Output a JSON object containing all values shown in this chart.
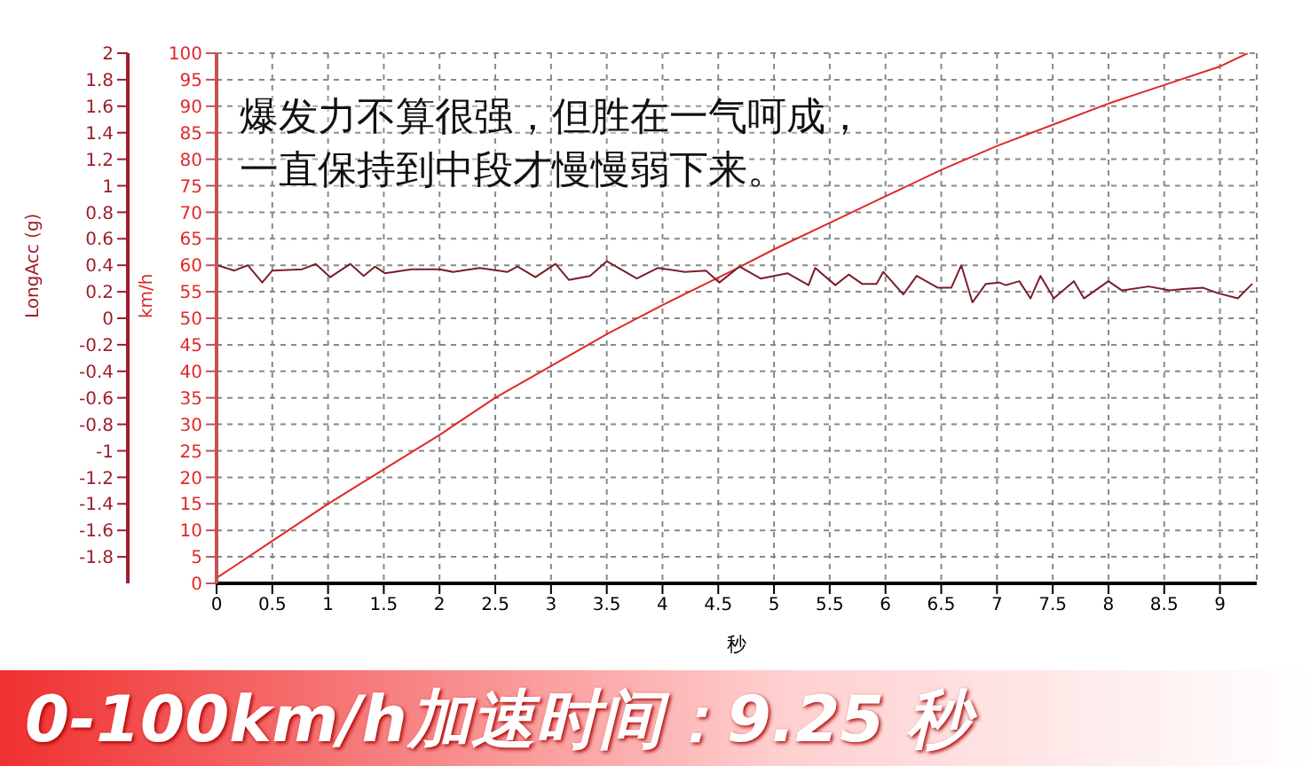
{
  "chart_data": {
    "type": "line",
    "xlabel": "秒",
    "ylabel": "km/h",
    "y2label": "LongAcc (g)",
    "annotations": [
      "爆发力不算很强，但胜在一气呵成，",
      "一直保持到中段才慢慢弱下来。",
      "0-100km/h加速时间：9.25 秒"
    ],
    "xlim": [
      0,
      9.33
    ],
    "xticks": [
      0,
      0.5,
      1,
      1.5,
      2,
      2.5,
      3,
      3.5,
      4,
      4.5,
      5,
      5.5,
      6,
      6.5,
      7,
      7.5,
      8,
      8.5,
      9
    ],
    "ylim": [
      0,
      100
    ],
    "yticks": [
      0,
      5,
      10,
      15,
      20,
      25,
      30,
      35,
      40,
      45,
      50,
      55,
      60,
      65,
      70,
      75,
      80,
      85,
      90,
      95,
      100
    ],
    "y2lim": [
      -2,
      2
    ],
    "y2ticks": [
      -1.8,
      -1.6,
      -1.4,
      -1.2,
      -1,
      -0.8,
      -0.6,
      -0.4,
      -0.2,
      0,
      0.2,
      0.4,
      0.6,
      0.8,
      1,
      1.2,
      1.4,
      1.6,
      1.8,
      2
    ],
    "grid": true,
    "marker": "none",
    "line_style": "solid",
    "series": [
      {
        "color": "#e02828",
        "x": [
          0,
          0.5,
          1,
          1.5,
          2,
          2.5,
          3,
          3.5,
          4,
          4.63,
          5,
          5.5,
          6,
          6.5,
          7,
          7.5,
          8,
          8.5,
          9,
          9.25
        ],
        "values": [
          1,
          8,
          15,
          21.5,
          28,
          35,
          41,
          47,
          52.5,
          59,
          63,
          68,
          73,
          78,
          82.5,
          86.5,
          90.5,
          94,
          97.5,
          100
        ]
      },
      {
        "color": "#7a1e2a",
        "axis": "y2",
        "x": [
          0.01,
          0.16,
          0.28,
          0.41,
          0.5,
          0.77,
          0.89,
          1.02,
          1.2,
          1.32,
          1.42,
          1.51,
          1.75,
          2,
          2.12,
          2.36,
          2.61,
          2.7,
          2.86,
          3.04,
          3.16,
          3.35,
          3.5,
          3.77,
          3.96,
          4.2,
          4.39,
          4.51,
          4.69,
          4.88,
          5.12,
          5.31,
          5.37,
          5.55,
          5.67,
          5.79,
          5.92,
          5.98,
          6.16,
          6.28,
          6.47,
          6.59,
          6.68,
          6.78,
          6.9,
          7.02,
          7.08,
          7.2,
          7.3,
          7.39,
          7.51,
          7.69,
          7.78,
          8,
          8.12,
          8.36,
          8.55,
          8.67,
          8.85,
          8.98,
          9.16,
          9.29
        ],
        "values": [
          0.4,
          0.36,
          0.4,
          0.27,
          0.36,
          0.37,
          0.41,
          0.31,
          0.41,
          0.32,
          0.39,
          0.34,
          0.37,
          0.37,
          0.35,
          0.38,
          0.35,
          0.39,
          0.31,
          0.41,
          0.29,
          0.32,
          0.43,
          0.3,
          0.38,
          0.35,
          0.36,
          0.27,
          0.39,
          0.3,
          0.34,
          0.25,
          0.38,
          0.25,
          0.33,
          0.26,
          0.26,
          0.35,
          0.18,
          0.32,
          0.23,
          0.23,
          0.4,
          0.12,
          0.26,
          0.27,
          0.25,
          0.28,
          0.15,
          0.32,
          0.15,
          0.28,
          0.15,
          0.28,
          0.21,
          0.24,
          0.21,
          0.22,
          0.23,
          0.19,
          0.15,
          0.26
        ]
      }
    ]
  }
}
